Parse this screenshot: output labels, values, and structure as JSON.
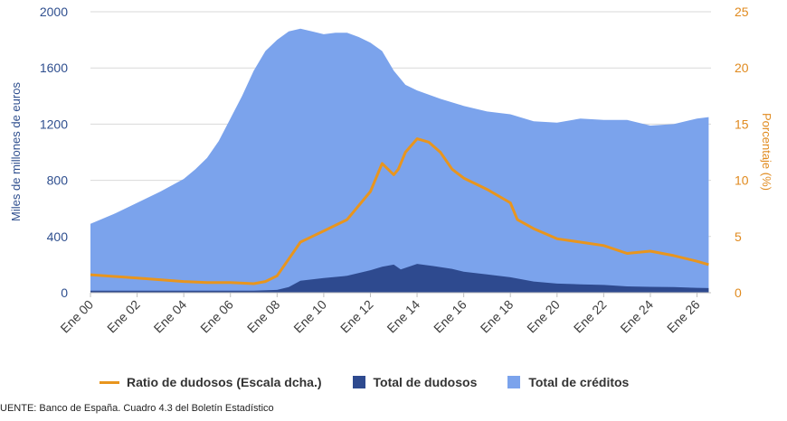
{
  "source_note": "UENTE: Banco de España. Cuadro 4.3 del Boletín Estadístico",
  "colors": {
    "total_creditos": "#7ba3ec",
    "total_dudosos": "#2e4a8f",
    "ratio": "#e8951e",
    "grid": "#d9d9d9"
  },
  "chart_data": {
    "type": "area",
    "ylabel": "Miles de millones de euros",
    "y2label": "Porcentaje (%)",
    "ylim": [
      0,
      2000
    ],
    "y2lim": [
      0,
      25
    ],
    "yticks": [
      "0",
      "400",
      "800",
      "1200",
      "1600",
      "2000"
    ],
    "y2ticks": [
      "0",
      "5",
      "10",
      "15",
      "20",
      "25"
    ],
    "xticks": [
      "Ene 00",
      "Ene 02",
      "Ene 04",
      "Ene 06",
      "Ene 08",
      "Ene 10",
      "Ene 12",
      "Ene 14",
      "Ene 16",
      "Ene 18",
      "Ene 20",
      "Ene 22",
      "Ene 24",
      "Ene 26"
    ],
    "xlim": [
      2000,
      2026.6
    ],
    "legend": [
      "Ratio de dudosos (Escala dcha.)",
      "Total de dudosos",
      "Total de créditos"
    ],
    "series": [
      {
        "name": "Total de créditos",
        "axis": "left",
        "kind": "area",
        "x": [
          2000,
          2001,
          2002,
          2003,
          2004,
          2004.5,
          2005,
          2005.5,
          2006,
          2006.5,
          2007,
          2007.5,
          2008,
          2008.5,
          2009,
          2009.5,
          2010,
          2010.5,
          2011,
          2011.5,
          2012,
          2012.5,
          2013,
          2013.5,
          2014,
          2015,
          2016,
          2017,
          2018,
          2019,
          2020,
          2021,
          2022,
          2023,
          2024,
          2025,
          2026,
          2026.5
        ],
        "values": [
          490,
          560,
          640,
          720,
          810,
          880,
          960,
          1080,
          1240,
          1400,
          1580,
          1720,
          1800,
          1860,
          1880,
          1860,
          1840,
          1850,
          1850,
          1820,
          1780,
          1720,
          1580,
          1480,
          1440,
          1380,
          1330,
          1290,
          1270,
          1220,
          1210,
          1240,
          1230,
          1230,
          1190,
          1200,
          1240,
          1250
        ]
      },
      {
        "name": "Total de dudosos",
        "axis": "left",
        "kind": "area",
        "x": [
          2000,
          2002,
          2004,
          2006,
          2007,
          2008,
          2008.5,
          2009,
          2010,
          2011,
          2012,
          2012.5,
          2013,
          2013.3,
          2014,
          2014.7,
          2015.5,
          2016,
          2017,
          2018,
          2019,
          2020,
          2021,
          2022,
          2023,
          2024,
          2025,
          2026,
          2026.5
        ],
        "values": [
          15,
          15,
          15,
          15,
          15,
          20,
          40,
          85,
          105,
          120,
          160,
          185,
          200,
          165,
          205,
          190,
          170,
          150,
          130,
          110,
          80,
          65,
          60,
          55,
          45,
          42,
          40,
          35,
          33
        ]
      },
      {
        "name": "Ratio de dudosos (Escala dcha.)",
        "axis": "right",
        "kind": "line",
        "x": [
          2000,
          2002,
          2004,
          2005,
          2006,
          2007,
          2007.5,
          2008,
          2008.5,
          2009,
          2009.5,
          2010,
          2011,
          2012,
          2012.5,
          2013,
          2013.2,
          2013.5,
          2014,
          2014.5,
          2015,
          2015.5,
          2016,
          2017,
          2018,
          2018.3,
          2019,
          2020,
          2021,
          2022,
          2023,
          2024,
          2025,
          2026,
          2026.5
        ],
        "values": [
          1.6,
          1.3,
          1.0,
          0.9,
          0.9,
          0.8,
          1.0,
          1.5,
          3.0,
          4.5,
          5.0,
          5.5,
          6.5,
          9.0,
          11.5,
          10.5,
          11.0,
          12.5,
          13.7,
          13.4,
          12.5,
          11.0,
          10.2,
          9.2,
          8.0,
          6.5,
          5.7,
          4.8,
          4.5,
          4.2,
          3.5,
          3.7,
          3.3,
          2.8,
          2.5
        ]
      }
    ]
  }
}
